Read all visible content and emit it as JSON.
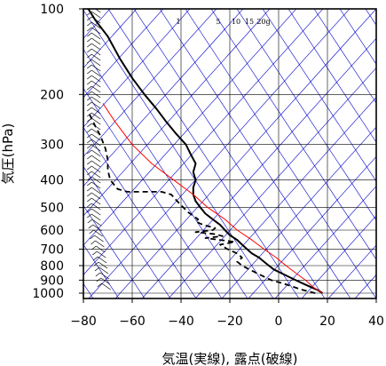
{
  "chart_data": {
    "type": "line",
    "subtype": "skew-T log-p diagram",
    "xlabel": "気温(実線), 露点(破線)",
    "ylabel": "気圧(hPa)",
    "x_ticks": [
      -80,
      -60,
      -40,
      -20,
      0,
      20,
      40
    ],
    "y_ticks": [
      100,
      200,
      300,
      400,
      500,
      600,
      700,
      800,
      900,
      1000
    ],
    "xlim": [
      -80,
      40
    ],
    "ylim": [
      1050,
      100
    ],
    "y_scale": "log",
    "grid": true,
    "mixing_ratio_labels": [
      "1",
      "5",
      "10",
      "15",
      "20g"
    ],
    "colors": {
      "temperature": "#000000",
      "dewpoint": "#000000",
      "parcel": "#ff0000",
      "dry_adiabats": "#0000cc",
      "isotherms": "#0000cc",
      "grid": "#000000"
    },
    "series": [
      {
        "style": "solid",
        "points": [
          [
            18,
            1000
          ],
          [
            16,
            975
          ],
          [
            13,
            950
          ],
          [
            10,
            925
          ],
          [
            7,
            900
          ],
          [
            4,
            875
          ],
          [
            1,
            850
          ],
          [
            -2,
            825
          ],
          [
            -4,
            800
          ],
          [
            -6,
            775
          ],
          [
            -8,
            750
          ],
          [
            -11,
            725
          ],
          [
            -13,
            700
          ],
          [
            -15,
            675
          ],
          [
            -17,
            650
          ],
          [
            -20,
            625
          ],
          [
            -22,
            600
          ],
          [
            -24,
            575
          ],
          [
            -27,
            550
          ],
          [
            -30,
            525
          ],
          [
            -32,
            500
          ],
          [
            -34,
            475
          ],
          [
            -35,
            450
          ],
          [
            -35,
            425
          ],
          [
            -34,
            400
          ],
          [
            -35,
            375
          ],
          [
            -34,
            350
          ],
          [
            -36,
            325
          ],
          [
            -38,
            300
          ],
          [
            -42,
            275
          ],
          [
            -46,
            250
          ],
          [
            -50,
            225
          ],
          [
            -55,
            200
          ],
          [
            -60,
            175
          ],
          [
            -65,
            150
          ],
          [
            -70,
            125
          ],
          [
            -75,
            110
          ],
          [
            -78,
            100
          ]
        ]
      },
      {
        "style": "dashed",
        "points": [
          [
            15,
            1000
          ],
          [
            10,
            975
          ],
          [
            6,
            950
          ],
          [
            2,
            925
          ],
          [
            -3,
            900
          ],
          [
            -6,
            875
          ],
          [
            -9,
            850
          ],
          [
            -12,
            825
          ],
          [
            -15,
            800
          ],
          [
            -17,
            775
          ],
          [
            -15,
            750
          ],
          [
            -17,
            725
          ],
          [
            -21,
            700
          ],
          [
            -24,
            675
          ],
          [
            -18,
            660
          ],
          [
            -24,
            650
          ],
          [
            -30,
            640
          ],
          [
            -23,
            630
          ],
          [
            -26,
            620
          ],
          [
            -34,
            610
          ],
          [
            -27,
            600
          ],
          [
            -26,
            590
          ],
          [
            -31,
            575
          ],
          [
            -34,
            560
          ],
          [
            -33,
            550
          ],
          [
            -37,
            520
          ],
          [
            -40,
            490
          ],
          [
            -42,
            470
          ],
          [
            -44,
            450
          ],
          [
            -48,
            440
          ],
          [
            -62,
            440
          ],
          [
            -66,
            430
          ],
          [
            -69,
            400
          ],
          [
            -70,
            370
          ],
          [
            -70,
            340
          ],
          [
            -71,
            310
          ],
          [
            -73,
            280
          ],
          [
            -75,
            260
          ],
          [
            -77,
            240
          ],
          [
            -78,
            230
          ]
        ]
      },
      {
        "style": "parcel",
        "points": [
          [
            18,
            1000
          ],
          [
            14,
            950
          ],
          [
            11,
            900
          ],
          [
            7,
            850
          ],
          [
            3,
            800
          ],
          [
            -1,
            750
          ],
          [
            -6,
            700
          ],
          [
            -11,
            650
          ],
          [
            -17,
            600
          ],
          [
            -22,
            550
          ],
          [
            -29,
            500
          ],
          [
            -35,
            450
          ],
          [
            -43,
            400
          ],
          [
            -52,
            350
          ],
          [
            -60,
            300
          ],
          [
            -67,
            250
          ],
          [
            -72,
            215
          ]
        ]
      }
    ]
  }
}
